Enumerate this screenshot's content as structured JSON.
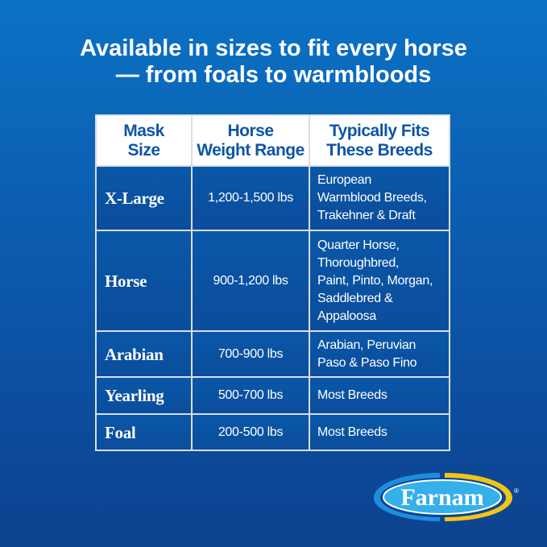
{
  "title": {
    "line1": "Available in sizes to fit every horse",
    "line2": "— from foals to warmbloods"
  },
  "table": {
    "headers": [
      {
        "l1": "Mask",
        "l2": "Size"
      },
      {
        "l1": "Horse",
        "l2": "Weight Range"
      },
      {
        "l1": "Typically Fits",
        "l2": "These Breeds"
      }
    ],
    "rows": [
      {
        "size": "X-Large",
        "weight": "1,200-1,500 lbs",
        "breeds": [
          "European",
          "Warmblood Breeds,",
          "Trakehner & Draft"
        ]
      },
      {
        "size": "Horse",
        "weight": "900-1,200 lbs",
        "breeds": [
          "Quarter Horse,",
          "Thoroughbred,",
          "Paint, Pinto, Morgan,",
          "Saddlebred &",
          "Appaloosa"
        ]
      },
      {
        "size": "Arabian",
        "weight": "700-900 lbs",
        "breeds": [
          "Arabian, Peruvian",
          "Paso & Paso Fino"
        ]
      },
      {
        "size": "Yearling",
        "weight": "500-700 lbs",
        "breeds": [
          "Most Breeds"
        ]
      },
      {
        "size": "Foal",
        "weight": "200-500 lbs",
        "breeds": [
          "Most Breeds"
        ]
      }
    ]
  },
  "logo": {
    "text": "Farnam",
    "mark": "®"
  }
}
